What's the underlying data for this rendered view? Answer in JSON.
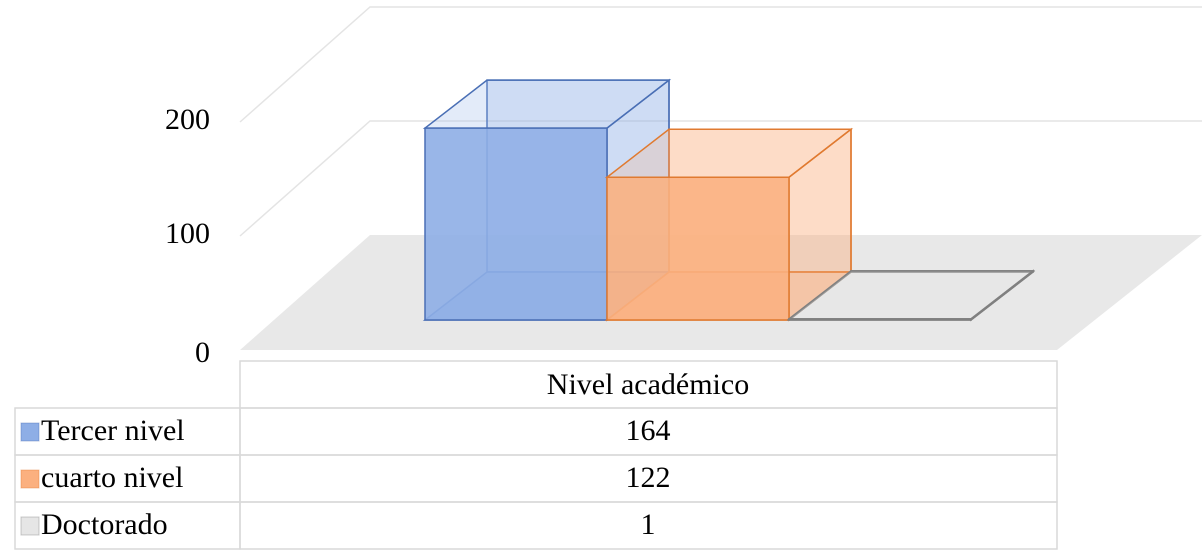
{
  "chart_data": {
    "type": "bar3d",
    "categories": [
      "Nivel académico"
    ],
    "series": [
      {
        "name": "Tercer nivel",
        "color": "#8eaee6",
        "values": [
          164
        ]
      },
      {
        "name": "cuarto nivel",
        "color": "#fbb07f",
        "values": [
          122
        ]
      },
      {
        "name": "Doctorado",
        "color": "#e6e6e6",
        "values": [
          1
        ]
      }
    ],
    "ylim": [
      0,
      200
    ],
    "yticks": [
      0,
      100,
      200
    ],
    "grid": true,
    "data_table": true
  }
}
